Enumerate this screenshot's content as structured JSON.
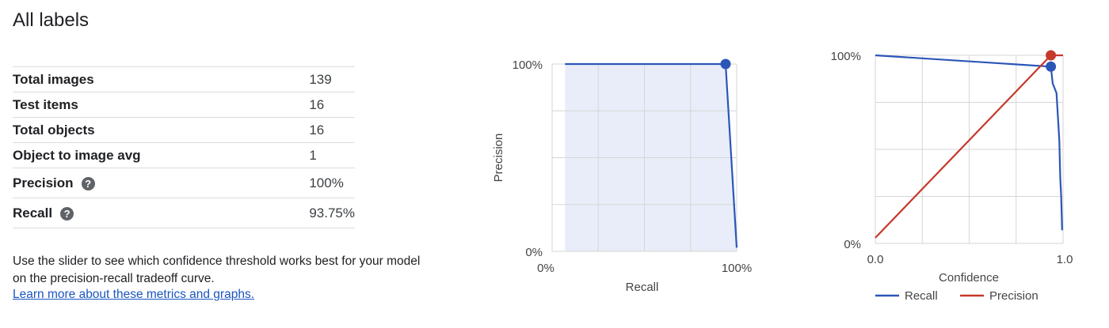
{
  "title": "All labels",
  "stats": [
    {
      "label": "Total images",
      "value": "139",
      "help": false
    },
    {
      "label": "Test items",
      "value": "16",
      "help": false
    },
    {
      "label": "Total objects",
      "value": "16",
      "help": false
    },
    {
      "label": "Object to image avg",
      "value": "1",
      "help": false
    },
    {
      "label": "Precision",
      "value": "100%",
      "help": true
    },
    {
      "label": "Recall",
      "value": "93.75%",
      "help": true
    }
  ],
  "description": "Use the slider to see which confidence threshold works best for your model on the precision-recall tradeoff curve.",
  "learn_more": "Learn more about these metrics and graphs.",
  "colors": {
    "recall": "#2b56b8",
    "precision": "#c6382b",
    "shade": "#e8edf9",
    "grid": "#d6d6d6"
  },
  "chart_data": [
    {
      "type": "area",
      "xlabel": "Recall",
      "ylabel": "Precision",
      "x_ticks": [
        "0%",
        "100%"
      ],
      "y_ticks": [
        "0%",
        "100%"
      ],
      "xlim": [
        0,
        1
      ],
      "ylim": [
        0,
        1
      ],
      "grid": true,
      "series": [
        {
          "x": [
            0.07,
            0.94,
            1.0
          ],
          "y": [
            1.0,
            1.0,
            0.02
          ]
        }
      ],
      "marker": {
        "x": 0.94,
        "y": 1.0
      }
    },
    {
      "type": "line",
      "xlabel": "Confidence",
      "ylabel": "",
      "x_ticks": [
        "0.0",
        "1.0"
      ],
      "y_ticks": [
        "0%",
        "100%"
      ],
      "xlim": [
        0,
        1
      ],
      "ylim": [
        0,
        1
      ],
      "grid": true,
      "legend": "bottom",
      "series": [
        {
          "name": "Recall",
          "x": [
            0.0,
            0.935,
            0.945,
            0.965,
            0.98,
            0.985,
            0.99,
            0.995
          ],
          "y": [
            1.0,
            0.94,
            0.85,
            0.8,
            0.55,
            0.35,
            0.25,
            0.07
          ]
        },
        {
          "name": "Precision",
          "x": [
            0.0,
            0.935,
            1.0
          ],
          "y": [
            0.03,
            1.0,
            1.0
          ]
        }
      ],
      "markers": [
        {
          "series": "Recall",
          "x": 0.935,
          "y": 0.94
        },
        {
          "series": "Precision",
          "x": 0.935,
          "y": 1.0
        }
      ]
    }
  ]
}
